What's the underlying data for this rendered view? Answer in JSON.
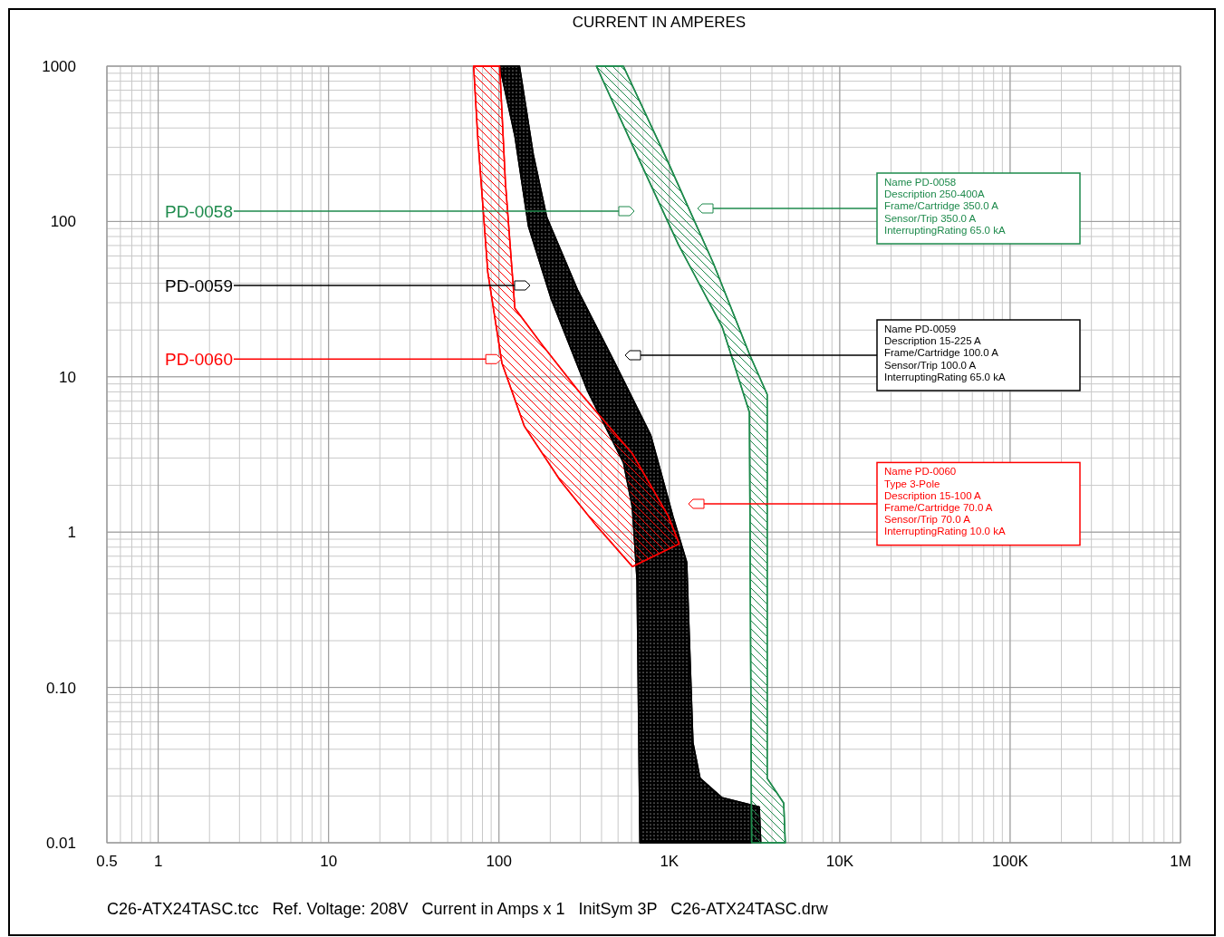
{
  "chart_data": {
    "type": "area",
    "xlabel": "CURRENT IN AMPERES",
    "log": "xy",
    "grid": true,
    "xlim": [
      0.5,
      1000000
    ],
    "ylim": [
      0.01,
      1000
    ],
    "xticks": [
      0.5,
      1,
      10,
      100,
      {
        "value": 1000,
        "label": "1K"
      },
      {
        "value": 10000,
        "label": "10K"
      },
      {
        "value": 100000,
        "label": "100K"
      },
      {
        "value": 1000000,
        "label": "1M"
      }
    ],
    "yticks": [
      {
        "value": 0.01,
        "label": "0.01"
      },
      {
        "value": 0.1,
        "label": "0.10"
      },
      1,
      10,
      100,
      1000
    ],
    "series": [
      {
        "color": "#1e8a4c",
        "x": [
          373,
          607,
          1130,
          2040,
          2950,
          3040,
          4790,
          4690,
          3750,
          3750,
          2950,
          1810,
          988,
          537
        ],
        "values": [
          1000,
          310,
          71,
          21,
          5.9,
          0.01,
          0.01,
          0.018,
          0.026,
          7.7,
          14,
          54,
          238,
          1000
        ]
      },
      {
        "color": "#000000",
        "x": [
          101,
          124,
          149,
          203,
          330,
          538,
          607,
          646,
          672,
          3440,
          3370,
          2040,
          1515,
          1376,
          1265,
          1050,
          778,
          478,
          290,
          191,
          159,
          132
        ],
        "values": [
          1000,
          355,
          93,
          31.6,
          8.2,
          2.8,
          1.44,
          0.49,
          0.01,
          0.01,
          0.017,
          0.0195,
          0.026,
          0.044,
          0.64,
          1.26,
          4.2,
          12.3,
          36,
          106,
          270,
          1000
        ]
      },
      {
        "color": "#ff0000",
        "x": [
          71,
          75,
          86,
          104,
          141,
          229,
          373,
          607,
          1143,
          988,
          607,
          290,
          179,
          124,
          109,
          101
        ],
        "values": [
          1000,
          355,
          47,
          12.3,
          4.8,
          2.15,
          1.1,
          0.6,
          0.84,
          1.26,
          3.2,
          8.2,
          16.1,
          27.6,
          181,
          1000
        ]
      }
    ],
    "annotations": [
      "PD-0058",
      "PD-0059",
      {
        "text": "PD-0060",
        "x": 103,
        "y": 13
      },
      "Name  PD-0058\nDescription 250-400A\nFrame/Cartridge 350.0 A\nSensor/Trip 350.0  A\nInterruptingRating  65.0 kA",
      "Name  PD-0059\nDescription 15-225 A\nFrame/Cartridge 100.0 A\nSensor/Trip 100.0  A\nInterruptingRating  65.0 kA",
      "Name  PD-0060\nType 3-Pole\nDescription 15-100 A\nFrame/Cartridge 70.0 A\nSensor/Trip 70.0 A\nInterruptingRating  10.0 kA",
      "C26-ATX24TASC.tcc   Ref. Voltage: 208V   Current in Amps x 1   InitSym 3P   C26-ATX24TASC.drw"
    ]
  }
}
